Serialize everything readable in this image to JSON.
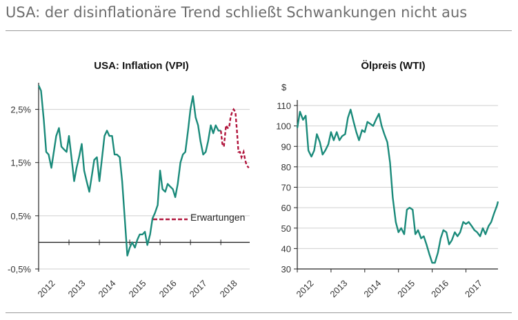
{
  "page": {
    "title": "USA: der disinflationäre Trend schließt Schwankungen nicht aus"
  },
  "colors": {
    "series": "#1a8a7a",
    "forecast": "#b0123a",
    "axis": "#222222",
    "grid": "#cfcfcf"
  },
  "chart_data": [
    {
      "type": "line",
      "title": "USA: Inflation (VPI)",
      "xlabel": "",
      "ylabel": "",
      "xlim": [
        2012,
        2018.95
      ],
      "ylim": [
        -0.5,
        3.0
      ],
      "y_ticks": [
        {
          "value": 2.5,
          "label": "2,5%"
        },
        {
          "value": 1.5,
          "label": "1,5%"
        },
        {
          "value": 0.5,
          "label": "0,5%"
        },
        {
          "value": -0.5,
          "label": "-0,5%"
        }
      ],
      "x_ticks": [
        "2012",
        "2013",
        "2014",
        "2015",
        "2016",
        "2017",
        "2018"
      ],
      "legend": {
        "label": "Erwartungen",
        "placement": "lower-right"
      },
      "series": [
        {
          "name": "VPI",
          "style": "solid",
          "x": [
            2012.0,
            2012.08,
            2012.17,
            2012.25,
            2012.33,
            2012.42,
            2012.5,
            2012.58,
            2012.67,
            2012.75,
            2012.83,
            2012.92,
            2013.0,
            2013.08,
            2013.17,
            2013.25,
            2013.33,
            2013.42,
            2013.5,
            2013.58,
            2013.67,
            2013.75,
            2013.83,
            2013.92,
            2014.0,
            2014.08,
            2014.17,
            2014.25,
            2014.33,
            2014.42,
            2014.5,
            2014.58,
            2014.67,
            2014.75,
            2014.83,
            2014.92,
            2015.0,
            2015.08,
            2015.17,
            2015.25,
            2015.33,
            2015.42,
            2015.5,
            2015.58,
            2015.67,
            2015.75,
            2015.83,
            2015.92,
            2016.0,
            2016.08,
            2016.17,
            2016.25,
            2016.33,
            2016.42,
            2016.5,
            2016.58,
            2016.67,
            2016.75,
            2016.83,
            2016.92,
            2017.0,
            2017.08,
            2017.17,
            2017.25,
            2017.33,
            2017.42,
            2017.5,
            2017.58,
            2017.67,
            2017.75,
            2017.83,
            2017.92,
            2018.0
          ],
          "values": [
            2.95,
            2.85,
            2.3,
            1.7,
            1.65,
            1.4,
            1.7,
            2.0,
            2.15,
            1.8,
            1.75,
            1.7,
            2.0,
            1.6,
            1.15,
            1.4,
            1.6,
            1.85,
            1.35,
            1.15,
            0.95,
            1.25,
            1.55,
            1.6,
            1.15,
            1.55,
            2.0,
            2.1,
            2.0,
            2.0,
            1.65,
            1.65,
            1.6,
            1.15,
            0.5,
            -0.25,
            -0.1,
            0.0,
            -0.1,
            0.05,
            0.15,
            0.15,
            0.2,
            -0.05,
            0.15,
            0.45,
            0.55,
            0.7,
            1.35,
            1.0,
            0.95,
            1.1,
            1.05,
            1.0,
            0.85,
            1.1,
            1.5,
            1.65,
            1.7,
            2.1,
            2.5,
            2.75,
            2.35,
            2.2,
            1.9,
            1.65,
            1.7,
            1.9,
            2.2,
            2.05,
            2.2,
            2.1,
            2.1
          ]
        },
        {
          "name": "Erwartungen",
          "style": "dashed",
          "x": [
            2018.0,
            2018.05,
            2018.1,
            2018.17,
            2018.22,
            2018.27,
            2018.32,
            2018.37,
            2018.42,
            2018.48,
            2018.53,
            2018.58,
            2018.63,
            2018.68,
            2018.75,
            2018.8,
            2018.85,
            2018.92
          ],
          "values": [
            2.1,
            1.85,
            1.8,
            2.2,
            2.15,
            2.15,
            2.35,
            2.45,
            2.5,
            2.45,
            2.1,
            1.7,
            1.7,
            1.6,
            1.7,
            1.55,
            1.45,
            1.4
          ]
        }
      ]
    },
    {
      "type": "line",
      "title": "Ölpreis (WTI)",
      "xlabel": "",
      "ylabel": "$",
      "xlim": [
        2012,
        2017.95
      ],
      "ylim": [
        30,
        110
      ],
      "y_ticks": [
        {
          "value": 110,
          "label": "110"
        },
        {
          "value": 100,
          "label": "100"
        },
        {
          "value": 90,
          "label": "90"
        },
        {
          "value": 80,
          "label": "80"
        },
        {
          "value": 70,
          "label": "70"
        },
        {
          "value": 60,
          "label": "60"
        },
        {
          "value": 50,
          "label": "50"
        },
        {
          "value": 40,
          "label": "40"
        },
        {
          "value": 30,
          "label": "30"
        }
      ],
      "x_ticks": [
        "2012",
        "2013",
        "2014",
        "2015",
        "2016",
        "2017"
      ],
      "series": [
        {
          "name": "WTI",
          "style": "solid",
          "x": [
            2012.0,
            2012.08,
            2012.17,
            2012.25,
            2012.33,
            2012.42,
            2012.5,
            2012.58,
            2012.67,
            2012.75,
            2012.83,
            2012.92,
            2013.0,
            2013.08,
            2013.17,
            2013.25,
            2013.33,
            2013.42,
            2013.5,
            2013.58,
            2013.67,
            2013.75,
            2013.83,
            2013.92,
            2014.0,
            2014.08,
            2014.17,
            2014.25,
            2014.33,
            2014.42,
            2014.5,
            2014.58,
            2014.67,
            2014.75,
            2014.83,
            2014.92,
            2015.0,
            2015.08,
            2015.17,
            2015.25,
            2015.33,
            2015.42,
            2015.5,
            2015.58,
            2015.67,
            2015.75,
            2015.83,
            2015.92,
            2016.0,
            2016.08,
            2016.17,
            2016.25,
            2016.33,
            2016.42,
            2016.5,
            2016.58,
            2016.67,
            2016.75,
            2016.83,
            2016.92,
            2017.0,
            2017.08,
            2017.17,
            2017.25,
            2017.33,
            2017.42,
            2017.5,
            2017.58,
            2017.67,
            2017.75,
            2017.83,
            2017.92,
            2017.95
          ],
          "values": [
            99,
            107,
            103,
            105,
            88,
            85,
            88,
            96,
            92,
            86,
            88,
            91,
            97,
            93,
            97,
            93,
            95,
            96,
            104,
            108,
            102,
            97,
            93,
            98,
            97,
            102,
            101,
            100,
            103,
            106,
            100,
            96,
            92,
            82,
            65,
            53,
            48,
            50,
            47,
            59,
            60,
            59,
            47,
            49,
            45,
            46,
            42,
            37,
            33,
            33,
            38,
            45,
            49,
            48,
            42,
            44,
            48,
            46,
            48,
            53,
            52,
            53,
            51,
            49,
            48,
            46,
            50,
            47,
            51,
            53,
            57,
            61,
            63
          ]
        }
      ]
    }
  ]
}
